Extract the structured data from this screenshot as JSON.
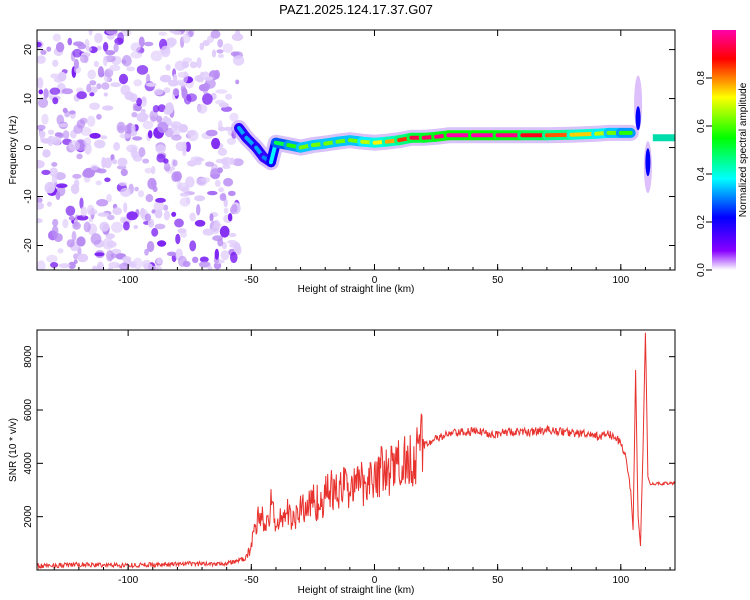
{
  "title": "PAZ1.2025.124.17.37.G07",
  "chart_data": [
    {
      "type": "heatmap",
      "title": "PAZ1.2025.124.17.37.G07",
      "xlabel": "Height of straight line (km)",
      "ylabel": "Frequency (Hz)",
      "xlim": [
        -137,
        122
      ],
      "ylim": [
        -25,
        24
      ],
      "x_ticks": [
        -100,
        -50,
        0,
        50,
        100
      ],
      "y_ticks": [
        -20,
        -10,
        0,
        10,
        20
      ],
      "x_tick_labels": [
        "-100",
        "-50",
        "0",
        "50",
        "100"
      ],
      "y_tick_labels": [
        "-20",
        "-10",
        "0",
        "10",
        "20"
      ],
      "ridge": {
        "x": [
          -55,
          -52,
          -48,
          -45,
          -42,
          -40,
          -35,
          -30,
          -25,
          -20,
          -15,
          -10,
          -5,
          0,
          5,
          10,
          15,
          20,
          25,
          30,
          40,
          50,
          60,
          70,
          80,
          90,
          95,
          100,
          104
        ],
        "frequency": [
          4,
          2,
          0,
          -2,
          -3,
          1,
          0.5,
          0,
          0.5,
          0.8,
          1.2,
          1.5,
          1.2,
          1,
          1.2,
          1.5,
          2,
          2,
          2.2,
          2.5,
          2.5,
          2.5,
          2.5,
          2.5,
          2.6,
          2.8,
          3,
          3,
          3
        ],
        "amplitude": [
          0.35,
          0.3,
          0.35,
          0.3,
          0.3,
          0.45,
          0.55,
          0.6,
          0.65,
          0.6,
          0.65,
          0.6,
          0.65,
          0.7,
          0.75,
          0.8,
          0.9,
          0.95,
          0.95,
          1,
          1,
          1,
          0.95,
          0.85,
          0.8,
          0.7,
          0.65,
          0.6,
          0.55
        ]
      },
      "colorbar": {
        "label": "Normalized spectral amplitude",
        "ticks": [
          0,
          0.2,
          0.4,
          0.6,
          0.8
        ],
        "tick_labels": [
          "0.0",
          "0.2",
          "0.4",
          "0.6",
          "0.8"
        ],
        "range": [
          0,
          1
        ],
        "colors": [
          "#ffffff",
          "#8800ff",
          "#0000ff",
          "#00ffff",
          "#00ff00",
          "#ffff00",
          "#ff0000",
          "#ff00aa"
        ]
      }
    },
    {
      "type": "line",
      "xlabel": "Height of straight line (km)",
      "ylabel": "SNR (10 * v/v)",
      "xlim": [
        -137,
        122
      ],
      "ylim": [
        0,
        9000
      ],
      "x_ticks": [
        -100,
        -50,
        0,
        50,
        100
      ],
      "y_ticks": [
        2000,
        4000,
        6000,
        8000
      ],
      "x_tick_labels": [
        "-100",
        "-50",
        "0",
        "50",
        "100"
      ],
      "y_tick_labels": [
        "2000",
        "4000",
        "6000",
        "8000"
      ],
      "color": "#e8322e",
      "x": [
        -137,
        -120,
        -100,
        -80,
        -60,
        -55,
        -52,
        -50,
        -48,
        -46,
        -44,
        -42,
        -40,
        -38,
        -35,
        -32,
        -30,
        -27,
        -25,
        -22,
        -20,
        -17,
        -15,
        -12,
        -10,
        -7,
        -5,
        -2,
        0,
        3,
        5,
        8,
        10,
        13,
        15,
        18,
        20,
        25,
        30,
        35,
        40,
        45,
        50,
        55,
        60,
        65,
        70,
        75,
        80,
        85,
        90,
        95,
        100,
        102,
        104,
        105,
        106,
        107,
        108,
        109,
        110,
        111,
        112,
        115,
        122
      ],
      "y": [
        150,
        200,
        180,
        220,
        250,
        350,
        450,
        900,
        1800,
        2200,
        1500,
        2500,
        1600,
        2000,
        2100,
        1900,
        2300,
        2400,
        2600,
        2500,
        2800,
        3000,
        2900,
        3100,
        3200,
        3100,
        3300,
        3400,
        3600,
        3700,
        3600,
        3800,
        4000,
        4100,
        4300,
        4500,
        4700,
        4900,
        5100,
        5150,
        5200,
        5150,
        5100,
        5200,
        5150,
        5200,
        5250,
        5200,
        5150,
        5100,
        5000,
        5100,
        4800,
        4200,
        3000,
        1500,
        7500,
        2000,
        900,
        4500,
        8900,
        3500,
        3200,
        3250,
        3250
      ]
    }
  ]
}
